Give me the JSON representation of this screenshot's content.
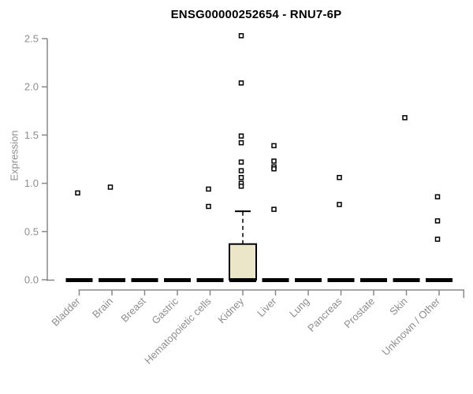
{
  "chart_data": {
    "type": "box",
    "title": "ENSG00000252654 - RNU7-6P",
    "ylabel": "Expression",
    "xlabel": "",
    "ylim": [
      0,
      2.5
    ],
    "yticks": [
      0.0,
      0.5,
      1.0,
      1.5,
      2.0,
      2.5
    ],
    "grid": false,
    "legend": "none",
    "categories": [
      "Bladder",
      "Brain",
      "Breast",
      "Gastric",
      "Hematopoietic cells",
      "Kidney",
      "Liver",
      "Lung",
      "Pancreas",
      "Prostate",
      "Skin",
      "Unknown / Other"
    ],
    "boxes": [
      {
        "category": "Bladder",
        "median": 0,
        "q1": 0,
        "q3": 0,
        "whisker_low": 0,
        "whisker_high": 0,
        "outliers": [
          0.9
        ]
      },
      {
        "category": "Brain",
        "median": 0,
        "q1": 0,
        "q3": 0,
        "whisker_low": 0,
        "whisker_high": 0,
        "outliers": [
          0.96
        ]
      },
      {
        "category": "Breast",
        "median": 0,
        "q1": 0,
        "q3": 0,
        "whisker_low": 0,
        "whisker_high": 0,
        "outliers": []
      },
      {
        "category": "Gastric",
        "median": 0,
        "q1": 0,
        "q3": 0,
        "whisker_low": 0,
        "whisker_high": 0,
        "outliers": []
      },
      {
        "category": "Hematopoietic cells",
        "median": 0,
        "q1": 0,
        "q3": 0,
        "whisker_low": 0,
        "whisker_high": 0,
        "outliers": [
          0.94,
          0.76
        ]
      },
      {
        "category": "Kidney",
        "median": 0,
        "q1": 0,
        "q3": 0.37,
        "whisker_low": 0,
        "whisker_high": 0.71,
        "outliers": [
          2.53,
          2.04,
          1.49,
          1.42,
          1.22,
          1.13,
          1.06,
          1.0,
          0.97
        ]
      },
      {
        "category": "Liver",
        "median": 0,
        "q1": 0,
        "q3": 0,
        "whisker_low": 0,
        "whisker_high": 0,
        "outliers": [
          1.39,
          1.23,
          1.17,
          1.15,
          0.73
        ]
      },
      {
        "category": "Lung",
        "median": 0,
        "q1": 0,
        "q3": 0,
        "whisker_low": 0,
        "whisker_high": 0,
        "outliers": []
      },
      {
        "category": "Pancreas",
        "median": 0,
        "q1": 0,
        "q3": 0,
        "whisker_low": 0,
        "whisker_high": 0,
        "outliers": [
          1.06,
          0.78
        ]
      },
      {
        "category": "Prostate",
        "median": 0,
        "q1": 0,
        "q3": 0,
        "whisker_low": 0,
        "whisker_high": 0,
        "outliers": []
      },
      {
        "category": "Skin",
        "median": 0,
        "q1": 0,
        "q3": 0,
        "whisker_low": 0,
        "whisker_high": 0,
        "outliers": [
          1.68
        ]
      },
      {
        "category": "Unknown / Other",
        "median": 0,
        "q1": 0,
        "q3": 0,
        "whisker_low": 0,
        "whisker_high": 0,
        "outliers": [
          0.86,
          0.61,
          0.42
        ]
      }
    ],
    "colors": {
      "box_fill": "#ece6c9",
      "box_border": "#000000",
      "median": "#000000",
      "whisker": "#000000",
      "point_stroke": "#000000",
      "point_fill": "#ffffff",
      "axis_line": "#888888",
      "tick_label": "#8e8e8e",
      "title": "#000000",
      "background": "#ffffff"
    }
  }
}
